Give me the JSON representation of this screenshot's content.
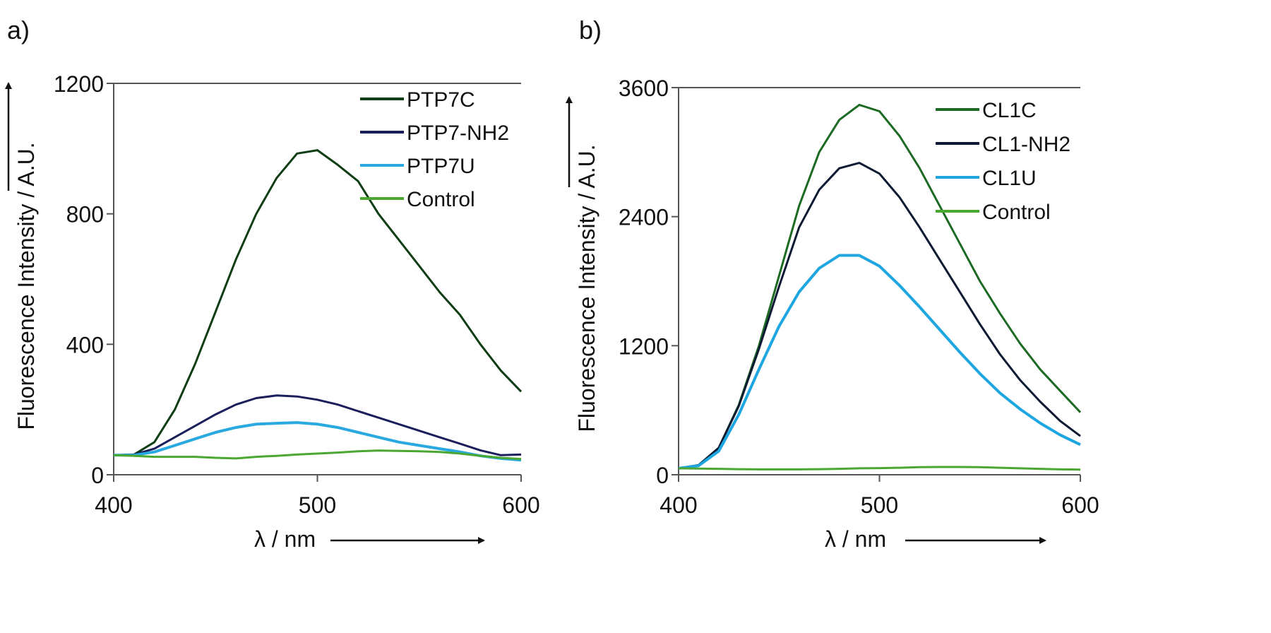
{
  "chart_data": [
    {
      "type": "line",
      "panel_label": "a)",
      "xlabel": "λ / nm",
      "ylabel": "Fluorescence Intensity / A.U.",
      "xlim": [
        400,
        600
      ],
      "ylim": [
        0,
        1200
      ],
      "xticks": [
        400,
        500,
        600
      ],
      "yticks": [
        0,
        400,
        800,
        1200
      ],
      "grid": false,
      "legend_position": "top-right",
      "x": [
        400,
        410,
        420,
        430,
        440,
        450,
        460,
        470,
        480,
        490,
        500,
        510,
        520,
        530,
        540,
        550,
        560,
        570,
        580,
        590,
        600
      ],
      "series": [
        {
          "name": "PTP7C",
          "color": "#0f3d14",
          "values": [
            60,
            62,
            100,
            200,
            340,
            500,
            660,
            800,
            910,
            985,
            995,
            950,
            900,
            800,
            720,
            640,
            560,
            490,
            400,
            320,
            255
          ]
        },
        {
          "name": "PTP7-NH2",
          "color": "#1a1f5c",
          "values": [
            60,
            62,
            80,
            115,
            150,
            185,
            215,
            235,
            243,
            240,
            230,
            215,
            195,
            175,
            155,
            135,
            115,
            95,
            75,
            60,
            62
          ]
        },
        {
          "name": "PTP7U",
          "color": "#2aa8e0",
          "values": [
            60,
            60,
            70,
            90,
            110,
            130,
            145,
            155,
            158,
            160,
            155,
            145,
            130,
            115,
            100,
            90,
            80,
            70,
            58,
            50,
            45
          ]
        },
        {
          "name": "Control",
          "color": "#4aa832",
          "values": [
            60,
            58,
            55,
            55,
            55,
            52,
            50,
            55,
            58,
            62,
            65,
            68,
            72,
            74,
            73,
            72,
            70,
            65,
            58,
            52,
            48
          ]
        }
      ]
    },
    {
      "type": "line",
      "panel_label": "b)",
      "xlabel": "λ / nm",
      "ylabel": "Fluorescence Intensity / A.U.",
      "xlim": [
        400,
        600
      ],
      "ylim": [
        0,
        3600
      ],
      "xticks": [
        400,
        500,
        600
      ],
      "yticks": [
        0,
        1200,
        2400,
        3600
      ],
      "grid": false,
      "legend_position": "top-right",
      "x": [
        400,
        410,
        420,
        430,
        440,
        450,
        460,
        470,
        480,
        490,
        500,
        510,
        520,
        530,
        540,
        550,
        560,
        570,
        580,
        590,
        600
      ],
      "series": [
        {
          "name": "CL1C",
          "color": "#1d6a24",
          "values": [
            60,
            90,
            250,
            650,
            1200,
            1850,
            2500,
            3000,
            3300,
            3440,
            3380,
            3150,
            2850,
            2500,
            2150,
            1800,
            1500,
            1220,
            980,
            780,
            580
          ]
        },
        {
          "name": "CL1-NH2",
          "color": "#0e1a33",
          "values": [
            60,
            90,
            250,
            640,
            1170,
            1750,
            2300,
            2650,
            2850,
            2900,
            2800,
            2580,
            2300,
            2000,
            1700,
            1400,
            1120,
            880,
            680,
            500,
            360
          ]
        },
        {
          "name": "CL1U",
          "color": "#1ea6e0",
          "values": [
            60,
            85,
            220,
            560,
            980,
            1380,
            1700,
            1920,
            2040,
            2040,
            1940,
            1760,
            1560,
            1350,
            1140,
            940,
            760,
            610,
            480,
            370,
            280
          ]
        },
        {
          "name": "Control",
          "color": "#4aa832",
          "values": [
            60,
            58,
            55,
            52,
            50,
            50,
            50,
            52,
            55,
            60,
            62,
            65,
            70,
            72,
            72,
            70,
            65,
            60,
            55,
            50,
            48
          ]
        }
      ]
    }
  ]
}
